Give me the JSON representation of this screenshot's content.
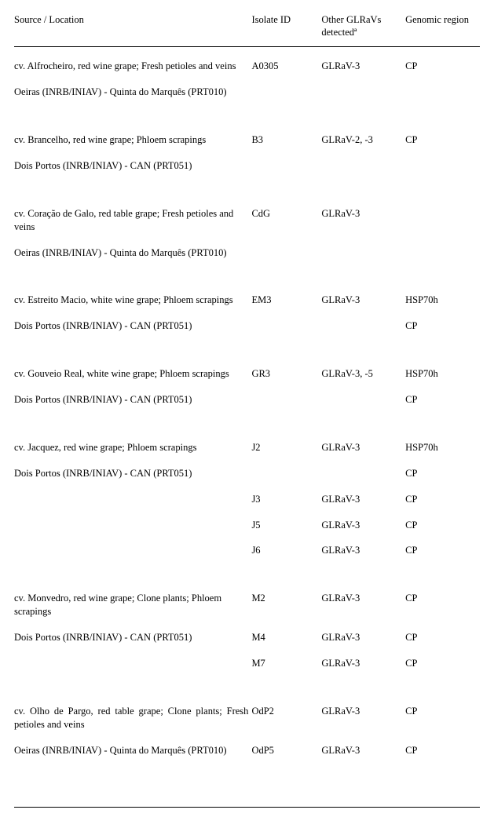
{
  "header": {
    "col1": "Source / Location",
    "col2": "Isolate ID",
    "col3_line1": "Other  GLRaVs",
    "col3_line2": "detectedª",
    "col4": "Genomic region"
  },
  "groups": [
    {
      "source": "cv. Alfrocheiro, red wine grape; Fresh petioles and veins",
      "location": "Oeiras (INRB/INIAV) - Quinta do Marquês (PRT010)",
      "rows": [
        {
          "id": "A0305",
          "glravs": "GLRaV-3",
          "region": "CP"
        }
      ]
    },
    {
      "source": "cv. Brancelho, red wine grape; Phloem scrapings",
      "location": "Dois Portos (INRB/INIAV) - CAN (PRT051)",
      "rows": [
        {
          "id": "B3",
          "glravs": "GLRaV-2, -3",
          "region": "CP"
        }
      ]
    },
    {
      "source": "cv. Coração de Galo, red table grape; Fresh petioles and veins",
      "location": "Oeiras (INRB/INIAV) - Quinta do Marquês (PRT010)",
      "rows": [
        {
          "id": "CdG",
          "glravs": "GLRaV-3",
          "region": ""
        }
      ]
    },
    {
      "source": "cv. Estreito Macio, white wine grape; Phloem scrapings",
      "location": "Dois Portos (INRB/INIAV) - CAN (PRT051)",
      "rows": [
        {
          "id": "EM3",
          "glravs": "GLRaV-3",
          "region": "HSP70h"
        },
        {
          "id": "",
          "glravs": "",
          "region": "CP"
        }
      ]
    },
    {
      "source": "cv. Gouveio Real, white wine grape; Phloem scrapings",
      "location": "Dois Portos (INRB/INIAV) - CAN (PRT051)",
      "rows": [
        {
          "id": "GR3",
          "glravs": "GLRaV-3, -5",
          "region": "HSP70h"
        },
        {
          "id": "",
          "glravs": "",
          "region": "CP"
        }
      ]
    },
    {
      "source": "cv. Jacquez, red wine grape; Phloem scrapings",
      "location": "Dois Portos (INRB/INIAV) - CAN (PRT051)",
      "rows": [
        {
          "id": "J2",
          "glravs": "GLRaV-3",
          "region": "HSP70h"
        },
        {
          "id": "",
          "glravs": "",
          "region": "CP"
        },
        {
          "id": "J3",
          "glravs": "GLRaV-3",
          "region": "CP"
        },
        {
          "id": "J5",
          "glravs": "GLRaV-3",
          "region": "CP"
        },
        {
          "id": "J6",
          "glravs": "GLRaV-3",
          "region": "CP"
        }
      ]
    },
    {
      "source": "cv. Monvedro, red wine grape; Clone plants; Phloem scrapings",
      "location": "Dois Portos (INRB/INIAV) - CAN (PRT051)",
      "rows": [
        {
          "id": "M2",
          "glravs": "GLRaV-3",
          "region": "CP"
        },
        {
          "id": "M4",
          "glravs": "GLRaV-3",
          "region": "CP"
        },
        {
          "id": "M7",
          "glravs": "GLRaV-3",
          "region": "CP"
        }
      ]
    },
    {
      "source_justify": true,
      "source": "cv. Olho de Pargo, red table grape; Clone plants; Fresh petioles and veins",
      "location": "Oeiras (INRB/INIAV) - Quinta do Marquês (PRT010)",
      "rows": [
        {
          "id": "OdP2",
          "glravs": "GLRaV-3",
          "region": "CP"
        },
        {
          "id": "OdP5",
          "glravs": "GLRaV-3",
          "region": "CP"
        }
      ]
    }
  ]
}
